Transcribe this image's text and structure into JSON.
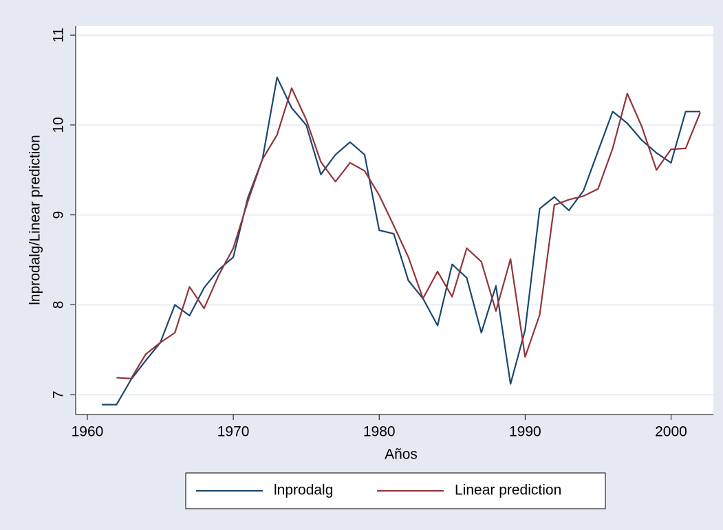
{
  "chart_data": {
    "type": "line",
    "xlabel": "Años",
    "ylabel": "lnprodalg/Linear prediction",
    "x": [
      1961,
      1962,
      1963,
      1964,
      1965,
      1966,
      1967,
      1968,
      1969,
      1970,
      1971,
      1972,
      1973,
      1974,
      1975,
      1976,
      1977,
      1978,
      1979,
      1980,
      1981,
      1982,
      1983,
      1984,
      1985,
      1986,
      1987,
      1988,
      1989,
      1990,
      1991,
      1992,
      1993,
      1994,
      1995,
      1996,
      1997,
      1998,
      1999,
      2000,
      2001,
      2002
    ],
    "series": [
      {
        "name": "lnprodalg",
        "color": "#1a476f",
        "values": [
          6.89,
          6.89,
          7.17,
          7.38,
          7.58,
          8.0,
          7.88,
          8.19,
          8.39,
          8.53,
          9.19,
          9.62,
          10.53,
          10.19,
          10.0,
          9.45,
          9.67,
          9.81,
          9.67,
          8.83,
          8.79,
          8.27,
          8.07,
          7.77,
          8.45,
          8.3,
          7.69,
          8.21,
          7.12,
          7.72,
          9.07,
          9.2,
          9.05,
          9.27,
          9.71,
          10.15,
          10.02,
          9.83,
          9.69,
          9.58,
          10.15,
          10.15
        ]
      },
      {
        "name": "Linear prediction",
        "color": "#90353b",
        "values": [
          null,
          7.19,
          7.18,
          7.45,
          7.58,
          7.69,
          8.2,
          7.96,
          8.33,
          8.63,
          9.15,
          9.62,
          9.89,
          10.41,
          10.06,
          9.59,
          9.37,
          9.58,
          9.49,
          9.22,
          8.88,
          8.53,
          8.07,
          8.37,
          8.09,
          8.63,
          8.48,
          7.93,
          8.51,
          7.42,
          7.89,
          9.11,
          9.17,
          9.21,
          9.29,
          9.74,
          10.35,
          9.98,
          9.5,
          9.73,
          9.74,
          10.14
        ]
      }
    ],
    "xlim": [
      1959.2,
      2002.9
    ],
    "xticks": [
      1960,
      1970,
      1980,
      1990,
      2000
    ],
    "ylim": [
      6.78,
      11.1
    ],
    "yticks": [
      7,
      8,
      9,
      10,
      11
    ],
    "grid": true,
    "legend": "bottom"
  }
}
